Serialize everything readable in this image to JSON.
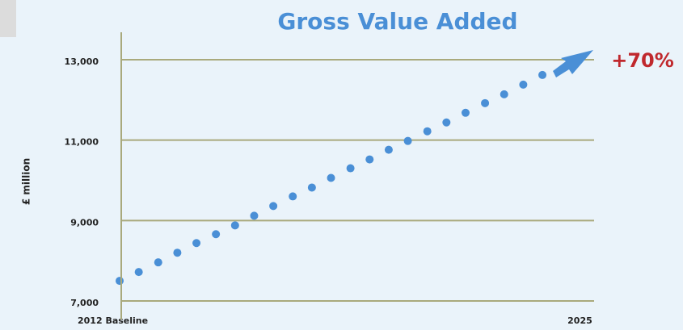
{
  "chart_data": {
    "type": "scatter",
    "title": "Gross Value Added",
    "ylabel": "£ million",
    "annotation": "+70%",
    "color": "#4a8fd6",
    "grid": true,
    "x": [
      2012,
      2012.54,
      2013.09,
      2013.63,
      2014.17,
      2014.72,
      2015.26,
      2015.8,
      2016.34,
      2016.89,
      2017.43,
      2017.97,
      2018.52,
      2019.06,
      2019.6,
      2020.14,
      2020.69,
      2021.23,
      2021.77,
      2022.32,
      2022.86,
      2023.4,
      2023.94
    ],
    "values": [
      7500,
      7720,
      7960,
      8200,
      8440,
      8660,
      8880,
      9120,
      9360,
      9600,
      9820,
      10060,
      10300,
      10520,
      10760,
      10980,
      11220,
      11440,
      11680,
      11920,
      12140,
      12380,
      12620
    ],
    "xlim": [
      2012,
      2025.4
    ],
    "xticks": [
      {
        "value": 2012,
        "label": "2012 Baseline"
      },
      {
        "value": 2025,
        "label": "2025"
      }
    ],
    "ylim": [
      7000,
      13000
    ],
    "yticks": [
      {
        "value": 7000,
        "label": "7,000"
      },
      {
        "value": 9000,
        "label": "9,000"
      },
      {
        "value": 11000,
        "label": "11,000"
      },
      {
        "value": 13000,
        "label": "13,000"
      }
    ]
  }
}
